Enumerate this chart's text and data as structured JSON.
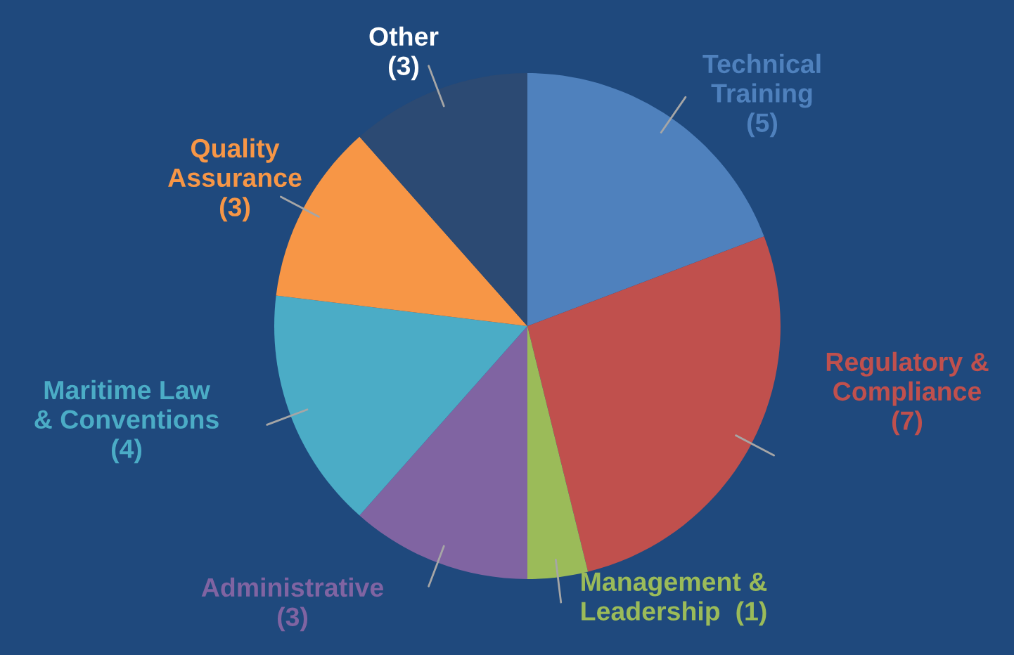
{
  "chart_data": {
    "type": "pie",
    "categories": [
      "Technical\nTraining",
      "Regulatory &\nCompliance",
      "Management &\nLeadership",
      "Administrative",
      "Maritime Law\n& Conventions",
      "Quality\nAssurance",
      "Other"
    ],
    "values": [
      5,
      7,
      1,
      3,
      4,
      3,
      3
    ],
    "value_labels": [
      "(5)",
      "(7)",
      "(1)",
      "(3)",
      "(4)",
      "(3)",
      "(3)"
    ],
    "colors": [
      "#4f81bd",
      "#c0504d",
      "#9bbb59",
      "#8064a2",
      "#4bacc6",
      "#f79646",
      "#2c4a73"
    ]
  }
}
